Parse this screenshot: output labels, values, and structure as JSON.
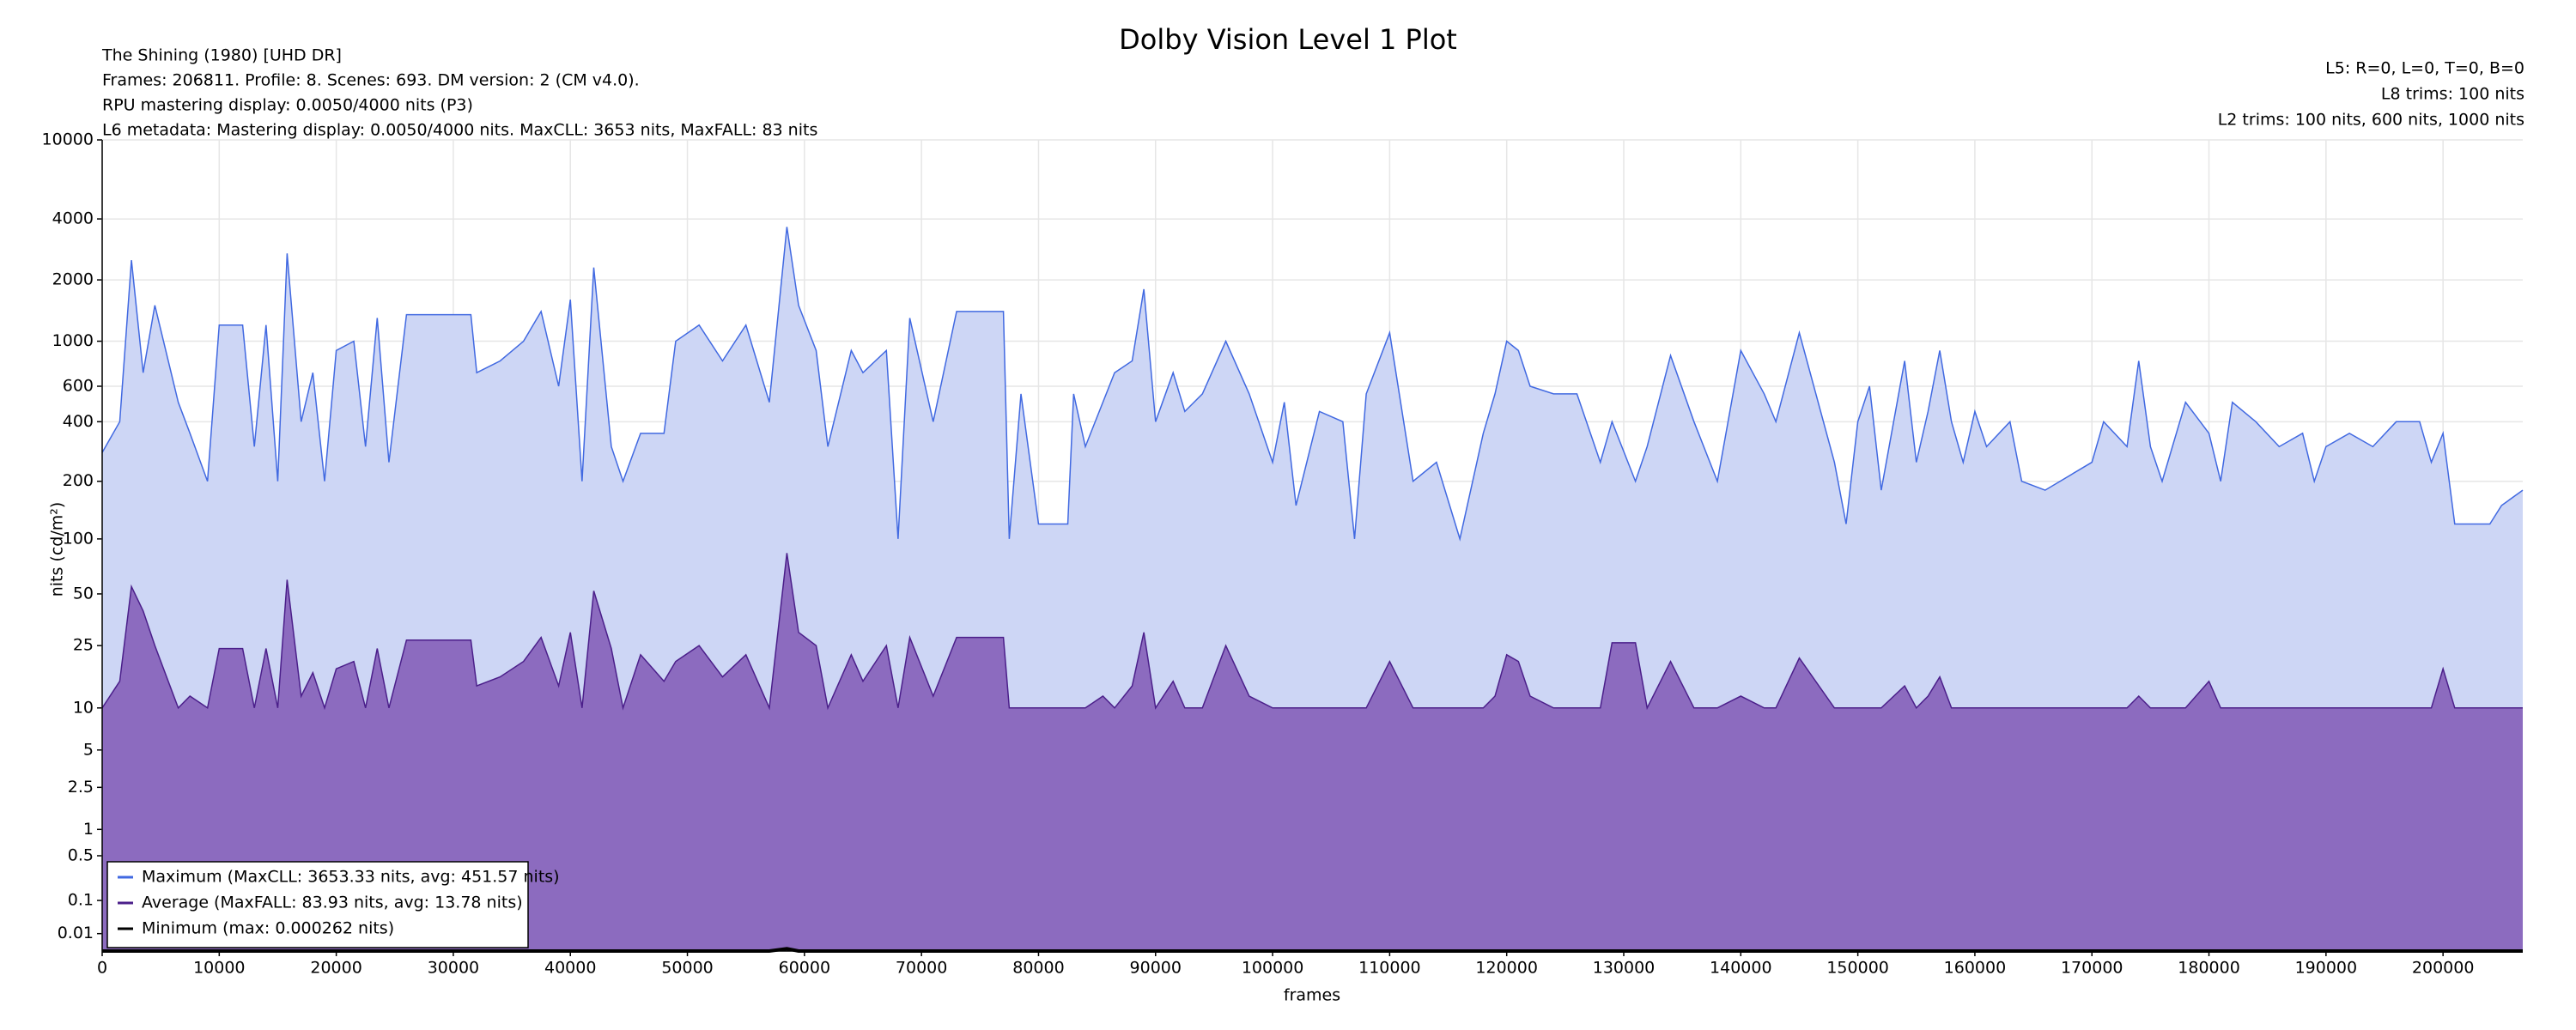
{
  "chart_data": {
    "type": "line",
    "title": "Dolby Vision Level 1 Plot",
    "annotations_left": [
      "The Shining (1980) [UHD DR]",
      "Frames: 206811. Profile: 8. Scenes: 693. DM version: 2 (CM v4.0).",
      "RPU mastering display: 0.0050/4000 nits  (P3)",
      "L6 metadata: Mastering display: 0.0050/4000 nits. MaxCLL: 3653 nits, MaxFALL: 83 nits"
    ],
    "annotations_right": [
      "L5: R=0, L=0, T=0, B=0",
      "L8 trims: 100 nits",
      "L2 trims: 100 nits, 600 nits, 1000 nits"
    ],
    "x_label": "frames",
    "y_label": "nits (cd/m²)",
    "yscale": "pq",
    "grid": true,
    "legend": "lower left",
    "xlim": [
      0,
      206811
    ],
    "xticks": [
      0,
      10000,
      20000,
      30000,
      40000,
      50000,
      60000,
      70000,
      80000,
      90000,
      100000,
      110000,
      120000,
      130000,
      140000,
      150000,
      160000,
      170000,
      180000,
      190000,
      200000
    ],
    "ylim": [
      0,
      10000
    ],
    "yticks": [
      0.01,
      0.1,
      0.5,
      1,
      2.5,
      5,
      10,
      25,
      50,
      100,
      200,
      400,
      600,
      1000,
      2000,
      4000,
      10000
    ],
    "x": [
      0,
      1500,
      2500,
      3500,
      4500,
      6500,
      7500,
      9000,
      10000,
      12000,
      13000,
      14000,
      15000,
      15800,
      17000,
      18000,
      19000,
      20000,
      21500,
      22500,
      23500,
      24500,
      26000,
      31500,
      32000,
      34000,
      36000,
      37500,
      39000,
      40000,
      41000,
      42000,
      43500,
      44500,
      46000,
      48000,
      49000,
      51000,
      53000,
      55000,
      57000,
      58500,
      59500,
      61000,
      62000,
      64000,
      65000,
      67000,
      68000,
      69000,
      71000,
      73000,
      77000,
      77500,
      78500,
      80000,
      82500,
      83000,
      84000,
      85500,
      86500,
      88000,
      89000,
      90000,
      91500,
      92500,
      94000,
      96000,
      98000,
      100000,
      101000,
      102000,
      104000,
      106000,
      107000,
      108000,
      110000,
      112000,
      114000,
      116000,
      118000,
      119000,
      120000,
      121000,
      122000,
      124000,
      126000,
      128000,
      129000,
      131000,
      132000,
      134000,
      136000,
      138000,
      140000,
      142000,
      143000,
      145000,
      148000,
      149000,
      150000,
      151000,
      152000,
      154000,
      155000,
      156000,
      157000,
      158000,
      159000,
      160000,
      161000,
      163000,
      164000,
      166000,
      170000,
      171000,
      173000,
      174000,
      175000,
      176000,
      178000,
      180000,
      181000,
      182000,
      184000,
      186000,
      188000,
      189000,
      190000,
      192000,
      194000,
      196000,
      198000,
      199000,
      200000,
      201000,
      204000,
      205000,
      206811
    ],
    "series": [
      {
        "name": "Maximum (MaxCLL: 3653.33 nits, avg: 451.57 nits)",
        "color": "#4169e1",
        "fill": "#cdd6f5",
        "values": [
          280,
          400,
          2500,
          700,
          1500,
          500,
          350,
          200,
          1200,
          1200,
          300,
          1200,
          200,
          2700,
          400,
          700,
          200,
          900,
          1000,
          300,
          1300,
          250,
          1350,
          1350,
          700,
          800,
          1000,
          1400,
          600,
          1600,
          200,
          2300,
          300,
          200,
          350,
          350,
          1000,
          1200,
          800,
          1200,
          500,
          3653.33,
          1500,
          900,
          300,
          900,
          700,
          900,
          100,
          1300,
          400,
          1400,
          1400,
          100,
          550,
          120,
          120,
          550,
          300,
          500,
          700,
          800,
          1800,
          400,
          700,
          450,
          550,
          1000,
          550,
          250,
          500,
          150,
          450,
          400,
          100,
          550,
          1100,
          200,
          250,
          100,
          350,
          550,
          1000,
          900,
          600,
          550,
          550,
          250,
          400,
          200,
          300,
          850,
          400,
          200,
          900,
          550,
          400,
          1100,
          250,
          120,
          400,
          600,
          180,
          800,
          250,
          450,
          900,
          400,
          250,
          450,
          300,
          400,
          200,
          180,
          250,
          400,
          300,
          800,
          300,
          200,
          500,
          350,
          200,
          500,
          400,
          300,
          350,
          200,
          300,
          350,
          300,
          400,
          400,
          250,
          350,
          120,
          120,
          150,
          180
        ]
      },
      {
        "name": "Average (MaxFALL: 83.93 nits, avg: 13.78 nits)",
        "color": "#4b1f8a",
        "fill": "#8c6bbf",
        "values": [
          10,
          15,
          55,
          40,
          25,
          10,
          12,
          10,
          24,
          24,
          10,
          24,
          10,
          60,
          12,
          17,
          10,
          18,
          20,
          10,
          24,
          10,
          27,
          27,
          14,
          16,
          20,
          28,
          14,
          30,
          10,
          52,
          24,
          10,
          22,
          15,
          20,
          25,
          16,
          22,
          10,
          83.93,
          30,
          25,
          10,
          22,
          15,
          25,
          10,
          28,
          12,
          28,
          28,
          10,
          10,
          10,
          10,
          10,
          10,
          12,
          10,
          14,
          30,
          10,
          15,
          10,
          10,
          25,
          12,
          10,
          10,
          10,
          10,
          10,
          10,
          10,
          20,
          10,
          10,
          10,
          10,
          12,
          22,
          20,
          12,
          10,
          10,
          10,
          26,
          26,
          10,
          20,
          10,
          10,
          12,
          10,
          10,
          21,
          10,
          10,
          10,
          10,
          10,
          14,
          10,
          12,
          16,
          10,
          10,
          10,
          10,
          10,
          10,
          10,
          10,
          10,
          10,
          12,
          10,
          10,
          10,
          15,
          10,
          10,
          10,
          10,
          10,
          10,
          10,
          10,
          10,
          10,
          10,
          10,
          18,
          10,
          10,
          10,
          10
        ]
      },
      {
        "name": "Minimum (max: 0.000262 nits)",
        "color": "#000000",
        "values": [
          0,
          0,
          0,
          0,
          0,
          0,
          0,
          0,
          0,
          0,
          0,
          0,
          0,
          0,
          0,
          0,
          0,
          0,
          0,
          0,
          0,
          0,
          0,
          0,
          0,
          0,
          0,
          0,
          0,
          0,
          0,
          0,
          0,
          0,
          0,
          0,
          0,
          0,
          0,
          0,
          0,
          0.000262,
          0,
          0,
          0,
          0,
          0,
          0,
          0,
          0,
          0,
          0,
          0,
          0,
          0,
          0,
          0,
          0,
          0,
          0,
          0,
          0,
          0,
          0,
          0,
          0,
          0,
          0,
          0,
          0,
          0,
          0,
          0,
          0,
          0,
          0,
          0,
          0,
          0,
          0,
          0,
          0,
          0,
          0,
          0,
          0,
          0,
          0,
          0,
          0,
          0,
          0,
          0,
          0,
          0,
          0,
          0,
          0,
          0,
          0,
          0,
          0,
          0,
          0,
          0,
          0,
          0,
          0,
          0,
          0,
          0,
          0,
          0,
          0,
          0,
          0,
          0,
          0,
          0,
          0,
          0,
          0,
          0,
          0,
          0,
          0,
          0,
          0,
          0,
          0,
          0,
          0,
          0,
          0,
          0,
          0,
          0,
          0,
          0
        ]
      }
    ]
  }
}
